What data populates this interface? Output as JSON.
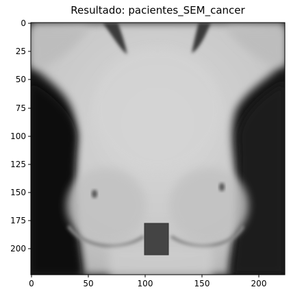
{
  "figure": {
    "title": "Resultado: pacientes_SEM_cancer",
    "x_ticks": [
      "0",
      "50",
      "100",
      "150",
      "200"
    ],
    "y_ticks": [
      "0",
      "25",
      "50",
      "75",
      "100",
      "125",
      "150",
      "175",
      "200"
    ],
    "image_extent": [
      0,
      223
    ],
    "colormap": "gray",
    "image_description": "grayscale thermographic frontal torso image"
  }
}
